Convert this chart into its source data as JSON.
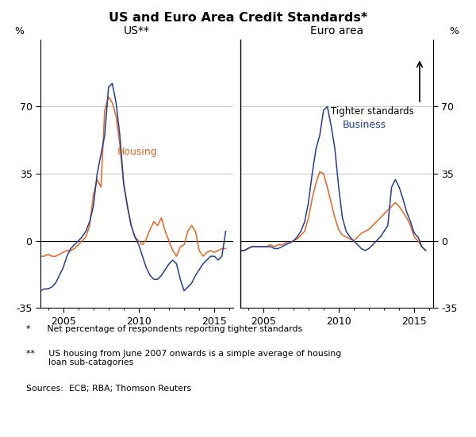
{
  "title": "US and Euro Area Credit Standards*",
  "left_label": "US**",
  "right_label": "Euro area",
  "left_ylabel": "%",
  "right_ylabel": "%",
  "ylim": [
    -35,
    105
  ],
  "yticks": [
    -35,
    0,
    35,
    70
  ],
  "housing_color": "#E8641E",
  "business_color": "#1F3D99",
  "footnote1": "*      Net percentage of respondents reporting tighter standards",
  "footnote2": "**     US housing from June 2007 onwards is a simple average of housing\n        loan sub-catagories",
  "footnote3": "Sources:  ECB; RBA; Thomson Reuters",
  "us_xlim": [
    2003.5,
    2016.25
  ],
  "ea_xlim": [
    2003.5,
    2016.25
  ],
  "xticks_us": [
    2005,
    2010,
    2015
  ],
  "xticks_ea": [
    2005,
    2010,
    2015
  ],
  "us_housing_t": [
    2003.5,
    2003.75,
    2004.0,
    2004.25,
    2004.5,
    2004.75,
    2005.0,
    2005.25,
    2005.5,
    2005.75,
    2006.0,
    2006.25,
    2006.5,
    2006.75,
    2007.0,
    2007.25,
    2007.5,
    2007.75,
    2008.0,
    2008.25,
    2008.5,
    2008.75,
    2009.0,
    2009.25,
    2009.5,
    2009.75,
    2010.0,
    2010.25,
    2010.5,
    2010.75,
    2011.0,
    2011.25,
    2011.5,
    2011.75,
    2012.0,
    2012.25,
    2012.5,
    2012.75,
    2013.0,
    2013.25,
    2013.5,
    2013.75,
    2014.0,
    2014.25,
    2014.5,
    2014.75,
    2015.0,
    2015.25,
    2015.5,
    2015.75
  ],
  "us_housing_v": [
    -8,
    -8,
    -7,
    -8,
    -8,
    -7,
    -6,
    -5,
    -5,
    -4,
    -2,
    0,
    2,
    8,
    24,
    32,
    28,
    68,
    75,
    72,
    65,
    50,
    30,
    18,
    8,
    2,
    0,
    -2,
    1,
    6,
    10,
    8,
    12,
    5,
    0,
    -5,
    -8,
    -3,
    -2,
    5,
    8,
    5,
    -5,
    -8,
    -6,
    -5,
    -6,
    -5,
    -4,
    -4
  ],
  "us_business_v": [
    -26,
    -25,
    -25,
    -24,
    -22,
    -18,
    -14,
    -8,
    -4,
    -2,
    0,
    2,
    5,
    10,
    18,
    35,
    45,
    55,
    80,
    82,
    72,
    55,
    30,
    18,
    8,
    2,
    -2,
    -8,
    -14,
    -18,
    -20,
    -20,
    -18,
    -15,
    -12,
    -10,
    -12,
    -20,
    -26,
    -24,
    -22,
    -18,
    -15,
    -12,
    -10,
    -8,
    -8,
    -10,
    -8,
    5
  ],
  "ea_housing_t": [
    2003.5,
    2003.75,
    2004.0,
    2004.25,
    2004.5,
    2004.75,
    2005.0,
    2005.25,
    2005.5,
    2005.75,
    2006.0,
    2006.25,
    2006.5,
    2006.75,
    2007.0,
    2007.25,
    2007.5,
    2007.75,
    2008.0,
    2008.25,
    2008.5,
    2008.75,
    2009.0,
    2009.25,
    2009.5,
    2009.75,
    2010.0,
    2010.25,
    2010.5,
    2010.75,
    2011.0,
    2011.25,
    2011.5,
    2011.75,
    2012.0,
    2012.25,
    2012.5,
    2012.75,
    2013.0,
    2013.25,
    2013.5,
    2013.75,
    2014.0,
    2014.25,
    2014.5,
    2014.75,
    2015.0,
    2015.25,
    2015.5,
    2015.75
  ],
  "ea_housing_v": [
    -5,
    -5,
    -4,
    -3,
    -3,
    -3,
    -3,
    -3,
    -2,
    -3,
    -2,
    -2,
    -1,
    -1,
    0,
    1,
    3,
    5,
    12,
    22,
    30,
    36,
    35,
    28,
    20,
    12,
    6,
    3,
    2,
    1,
    0,
    2,
    4,
    5,
    6,
    8,
    10,
    12,
    14,
    16,
    18,
    20,
    18,
    15,
    12,
    8,
    2,
    0,
    -3,
    -5
  ],
  "ea_business_v": [
    -5,
    -5,
    -4,
    -3,
    -3,
    -3,
    -3,
    -3,
    -3,
    -4,
    -4,
    -3,
    -2,
    -1,
    0,
    2,
    5,
    10,
    20,
    35,
    48,
    55,
    68,
    70,
    60,
    48,
    28,
    12,
    5,
    2,
    0,
    -2,
    -4,
    -5,
    -4,
    -2,
    0,
    2,
    5,
    8,
    28,
    32,
    28,
    22,
    15,
    10,
    4,
    2,
    -3,
    -5
  ]
}
